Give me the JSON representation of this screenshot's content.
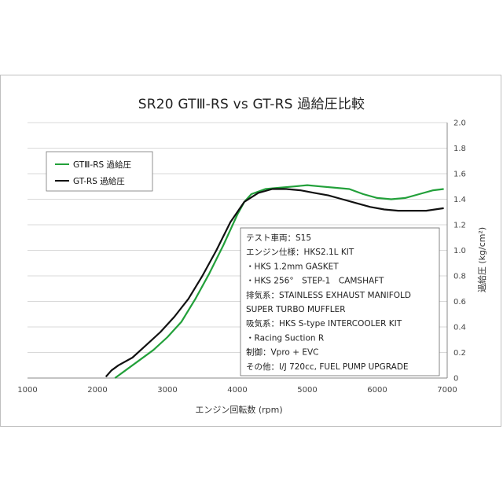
{
  "chart_data": {
    "type": "line",
    "title": "SR20 GTⅢ-RS vs GT-RS 過給圧比較",
    "xlabel": "エンジン回転数 (rpm)",
    "ylabel": "過給圧 (kg/cm²)",
    "xlim": [
      1000,
      7000
    ],
    "ylim": [
      0,
      2.0
    ],
    "x_ticks": [
      "1000",
      "2000",
      "3000",
      "4000",
      "5000",
      "6000",
      "7000"
    ],
    "y_ticks": [
      "0",
      "0.2",
      "0.4",
      "0.6",
      "0.8",
      "1.0",
      "1.2",
      "1.4",
      "1.6",
      "1.8",
      "2.0"
    ],
    "grid": "horizontal",
    "legend_position": "top-left",
    "series": [
      {
        "name": "GTⅢ-RS 過給圧",
        "color": "#22a03a",
        "points": [
          [
            2250,
            0.0
          ],
          [
            2400,
            0.06
          ],
          [
            2600,
            0.14
          ],
          [
            2800,
            0.22
          ],
          [
            3000,
            0.32
          ],
          [
            3200,
            0.44
          ],
          [
            3400,
            0.62
          ],
          [
            3600,
            0.82
          ],
          [
            3800,
            1.04
          ],
          [
            4000,
            1.28
          ],
          [
            4100,
            1.38
          ],
          [
            4200,
            1.44
          ],
          [
            4400,
            1.48
          ],
          [
            4600,
            1.49
          ],
          [
            4800,
            1.5
          ],
          [
            5000,
            1.51
          ],
          [
            5200,
            1.5
          ],
          [
            5400,
            1.49
          ],
          [
            5600,
            1.48
          ],
          [
            5800,
            1.44
          ],
          [
            6000,
            1.41
          ],
          [
            6200,
            1.4
          ],
          [
            6400,
            1.41
          ],
          [
            6600,
            1.44
          ],
          [
            6800,
            1.47
          ],
          [
            6950,
            1.48
          ]
        ]
      },
      {
        "name": "GT-RS 過給圧",
        "color": "#111111",
        "points": [
          [
            2120,
            0.01
          ],
          [
            2200,
            0.06
          ],
          [
            2300,
            0.1
          ],
          [
            2500,
            0.16
          ],
          [
            2700,
            0.26
          ],
          [
            2900,
            0.36
          ],
          [
            3100,
            0.48
          ],
          [
            3300,
            0.62
          ],
          [
            3500,
            0.8
          ],
          [
            3700,
            1.0
          ],
          [
            3900,
            1.22
          ],
          [
            4100,
            1.38
          ],
          [
            4300,
            1.45
          ],
          [
            4500,
            1.48
          ],
          [
            4700,
            1.48
          ],
          [
            4900,
            1.47
          ],
          [
            5100,
            1.45
          ],
          [
            5300,
            1.43
          ],
          [
            5500,
            1.4
          ],
          [
            5700,
            1.37
          ],
          [
            5900,
            1.34
          ],
          [
            6100,
            1.32
          ],
          [
            6300,
            1.31
          ],
          [
            6500,
            1.31
          ],
          [
            6700,
            1.31
          ],
          [
            6950,
            1.33
          ]
        ]
      }
    ],
    "annotations": [
      "テスト車両：S15",
      "エンジン仕様：HKS2.1L KIT",
      "・HKS 1.2mm GASKET",
      "・HKS 256°　STEP-1　CAMSHAFT",
      "排気系：STAINLESS EXHAUST MANIFOLD",
      "SUPER TURBO MUFFLER",
      "吸気系：HKS S-type INTERCOOLER KIT",
      "・Racing Suction R",
      "制御：Vpro + EVC",
      "その他：I/J 720cc, FUEL PUMP UPGRADE"
    ]
  }
}
